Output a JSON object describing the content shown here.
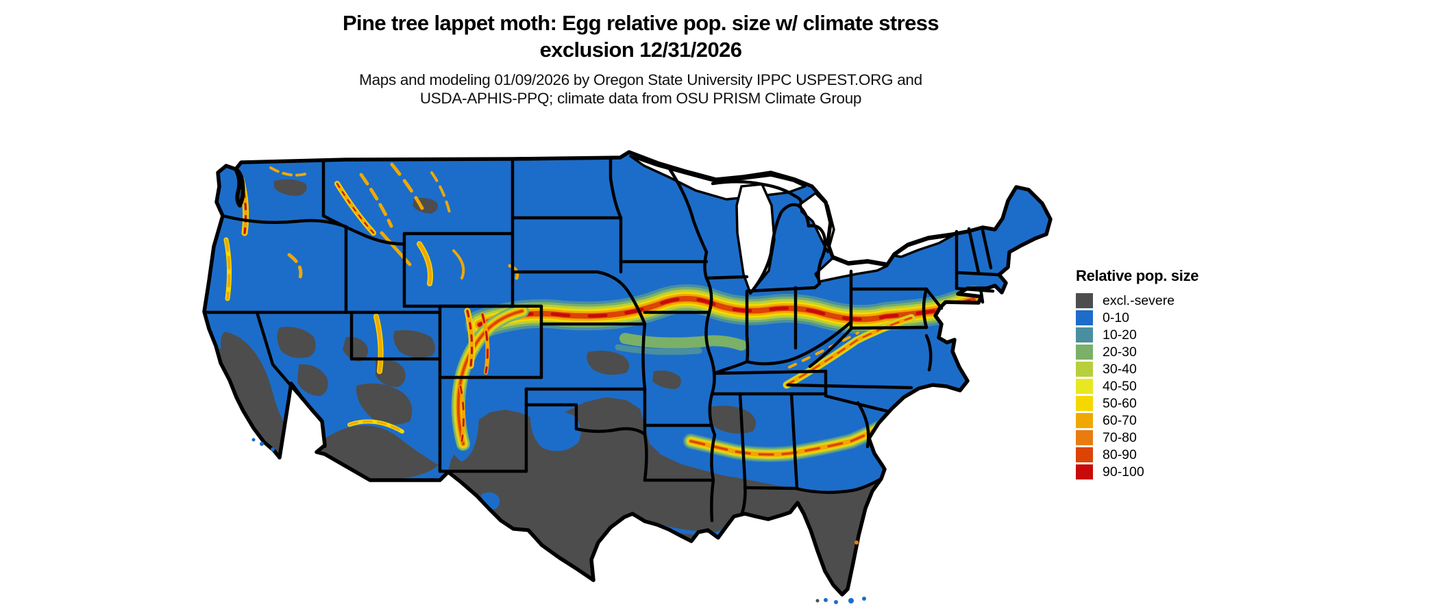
{
  "header": {
    "title_line1": "Pine tree lappet moth: Egg relative pop. size w/ climate stress",
    "title_line2": "exclusion 12/31/2026",
    "subtitle_line1": "Maps and modeling 01/09/2026 by Oregon State University IPPC USPEST.ORG and",
    "subtitle_line2": "USDA-APHIS-PPQ; climate data from OSU PRISM Climate Group"
  },
  "legend": {
    "title": "Relative pop. size",
    "items": [
      {
        "label": "excl.-severe",
        "color": "#4d4d4d"
      },
      {
        "label": "0-10",
        "color": "#1c6dc9"
      },
      {
        "label": "10-20",
        "color": "#4a8fa0"
      },
      {
        "label": "20-30",
        "color": "#7ab068"
      },
      {
        "label": "30-40",
        "color": "#b8cf3c"
      },
      {
        "label": "40-50",
        "color": "#e8e821"
      },
      {
        "label": "50-60",
        "color": "#f5d800"
      },
      {
        "label": "60-70",
        "color": "#f0a800"
      },
      {
        "label": "70-80",
        "color": "#e87c10"
      },
      {
        "label": "80-90",
        "color": "#dc4405"
      },
      {
        "label": "90-100",
        "color": "#c80a0a"
      }
    ]
  },
  "map": {
    "depicts": "Conterminous United States with state boundaries",
    "palette": {
      "blue": "#1c6dc9",
      "gray": "#4d4d4d",
      "teal": "#4a8fa0",
      "green": "#7ab068",
      "yellowgreen": "#b8cf3c",
      "brightyellow": "#e8e821",
      "yellow": "#f5d800",
      "orange": "#f0a800",
      "darkorange": "#e87c10",
      "redorange": "#dc4405",
      "red": "#c80a0a",
      "border": "#000000",
      "water": "#ffffff"
    }
  }
}
